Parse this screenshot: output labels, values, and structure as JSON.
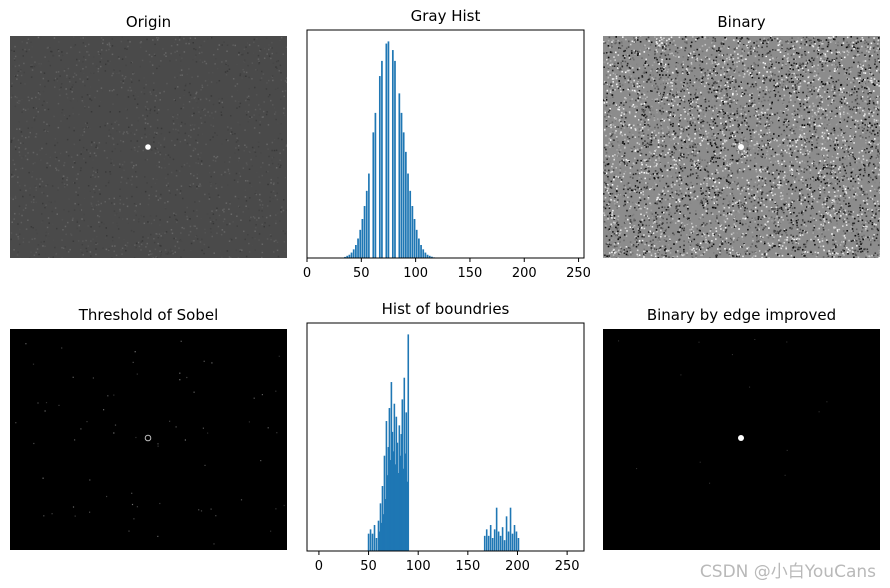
{
  "panels": [
    {
      "title": "Origin"
    },
    {
      "title": "Gray Hist"
    },
    {
      "title": "Binary"
    },
    {
      "title": "Threshold of Sobel"
    },
    {
      "title": "Hist of boundries"
    },
    {
      "title": "Binary by edge improved"
    }
  ],
  "watermark": "CSDN @小白YouCans",
  "colors": {
    "bar": "#1f77b4",
    "origin_bg": "#4a4a4a",
    "binary_bg": "#8c8c8c",
    "dark_bg": "#000000",
    "spot": "#ffffff"
  },
  "chart_data": [
    {
      "type": "bar",
      "title": "Gray Hist",
      "xlim": [
        0,
        255
      ],
      "xticks": [
        0,
        50,
        100,
        150,
        200,
        250
      ],
      "grid": false,
      "y_axis_visible": false,
      "x": [
        35,
        37,
        39,
        41,
        43,
        45,
        47,
        49,
        51,
        53,
        55,
        57,
        59,
        61,
        63,
        65,
        67,
        69,
        71,
        73,
        75,
        77,
        79,
        81,
        83,
        85,
        87,
        89,
        91,
        93,
        95,
        97,
        99,
        101,
        103,
        105,
        107,
        109,
        111,
        113,
        115,
        117,
        119
      ],
      "values": [
        0.5,
        1,
        1.5,
        2.5,
        4,
        6,
        9,
        13,
        18,
        24,
        31,
        39,
        49,
        58,
        67,
        76,
        84,
        91,
        96,
        99,
        100,
        99,
        96,
        91,
        84,
        76,
        67,
        58,
        49,
        39,
        31,
        24,
        18,
        13,
        9,
        6,
        4,
        2.5,
        1.5,
        1,
        0.6,
        0.3,
        0.2
      ],
      "gaps": [
        59,
        65,
        71,
        77,
        83
      ]
    },
    {
      "type": "bar",
      "title": "Hist of boundries",
      "xlim": [
        -12,
        267
      ],
      "xticks": [
        0,
        50,
        100,
        150,
        200,
        250
      ],
      "grid": false,
      "y_axis_visible": false,
      "x": [
        50,
        52,
        54,
        56,
        58,
        60,
        61,
        62,
        63,
        64,
        65,
        66,
        67,
        68,
        69,
        70,
        71,
        72,
        73,
        74,
        75,
        76,
        77,
        78,
        79,
        80,
        81,
        82,
        83,
        84,
        85,
        86,
        87,
        88,
        89,
        90,
        167,
        169,
        171,
        173,
        175,
        177,
        179,
        181,
        183,
        185,
        187,
        189,
        191,
        193,
        195,
        197,
        199,
        201
      ],
      "values": [
        8,
        10,
        8,
        12,
        6,
        14,
        9,
        22,
        13,
        30,
        17,
        44,
        24,
        60,
        35,
        48,
        66,
        42,
        78,
        55,
        46,
        68,
        40,
        62,
        50,
        36,
        58,
        44,
        54,
        70,
        38,
        80,
        45,
        64,
        32,
        100,
        7,
        10,
        7,
        12,
        6,
        10,
        20,
        9,
        7,
        11,
        5,
        16,
        9,
        20,
        8,
        12,
        9,
        6
      ]
    }
  ]
}
